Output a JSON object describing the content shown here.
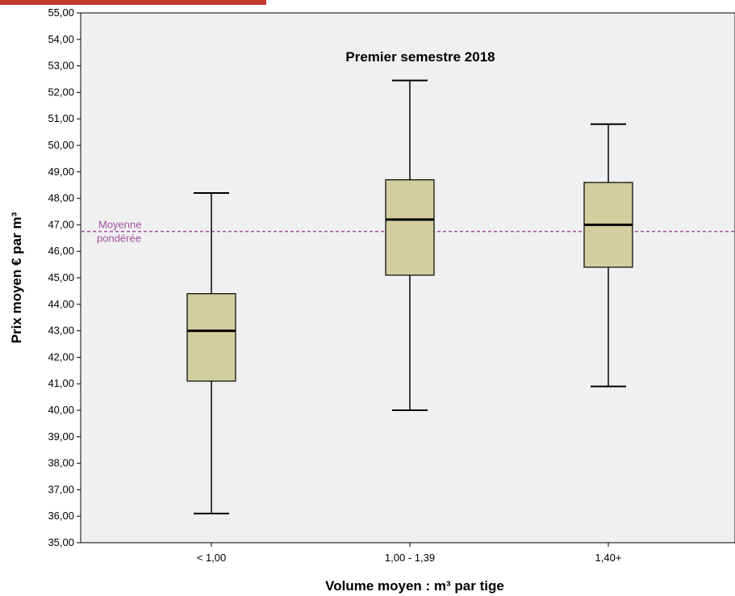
{
  "colors": {
    "plot_bg": "#f0f0f0",
    "box_fill": "#d3ce9e",
    "reference_line": "#a050a0",
    "header_strip": "#c0392b"
  },
  "chart_data": {
    "type": "box",
    "title": "Premier semestre 2018",
    "xlabel": "Volume moyen  : m³ par tige",
    "ylabel": "Prix moyen € par m³",
    "ylim": [
      35,
      55
    ],
    "yticks": [
      "35,00",
      "36,00",
      "37,00",
      "38,00",
      "39,00",
      "40,00",
      "41,00",
      "42,00",
      "43,00",
      "44,00",
      "45,00",
      "46,00",
      "47,00",
      "48,00",
      "49,00",
      "50,00",
      "51,00",
      "52,00",
      "53,00",
      "54,00",
      "55,00"
    ],
    "categories": [
      "< 1,00",
      "1,00 - 1,39",
      "1,40+"
    ],
    "boxes": [
      {
        "category": "< 1,00",
        "min": 36.1,
        "q1": 41.1,
        "median": 43.0,
        "q3": 44.4,
        "max": 48.2
      },
      {
        "category": "1,00 - 1,39",
        "min": 40.0,
        "q1": 45.1,
        "median": 47.2,
        "q3": 48.7,
        "max": 52.45
      },
      {
        "category": "1,40+",
        "min": 40.9,
        "q1": 45.4,
        "median": 47.0,
        "q3": 48.6,
        "max": 50.8
      }
    ],
    "reference_line": {
      "value": 46.75,
      "label_line1": "Moyenne",
      "label_line2": "pondérée",
      "style": "dashed"
    },
    "grid": false
  }
}
